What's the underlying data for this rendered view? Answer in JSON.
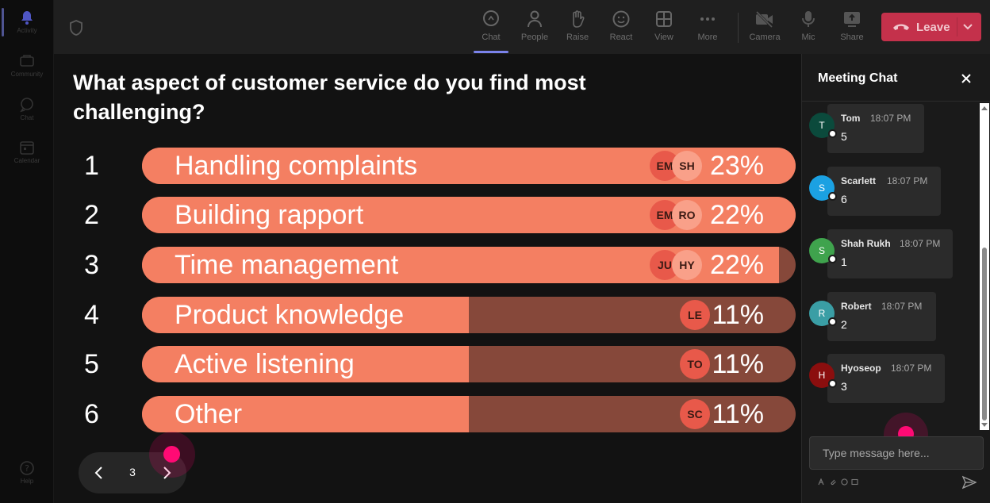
{
  "rail": {
    "items": [
      {
        "label": "Activity"
      },
      {
        "label": "Community"
      },
      {
        "label": "Chat"
      },
      {
        "label": "Calendar"
      }
    ],
    "help": "Help"
  },
  "toolbar": {
    "chat": "Chat",
    "people": "People",
    "raise": "Raise",
    "react": "React",
    "view": "View",
    "more": "More",
    "camera": "Camera",
    "mic": "Mic",
    "share": "Share",
    "leave": "Leave"
  },
  "poll": {
    "question": "What aspect of customer service do you find most challenging?",
    "options": [
      {
        "num": "1",
        "label": "Handling complaints",
        "percent": "23%",
        "fill": 1.0,
        "avatars": [
          "EM",
          "SH"
        ]
      },
      {
        "num": "2",
        "label": "Building rapport",
        "percent": "22%",
        "fill": 1.0,
        "avatars": [
          "EM",
          "RO"
        ]
      },
      {
        "num": "3",
        "label": "Time management",
        "percent": "22%",
        "fill": 0.975,
        "avatars": [
          "JU",
          "HY"
        ]
      },
      {
        "num": "4",
        "label": "Product knowledge",
        "percent": "11%",
        "fill": 0.5,
        "avatars": [
          "LE"
        ]
      },
      {
        "num": "5",
        "label": "Active listening",
        "percent": "11%",
        "fill": 0.5,
        "avatars": [
          "TO"
        ]
      },
      {
        "num": "6",
        "label": "Other",
        "percent": "11%",
        "fill": 0.5,
        "avatars": [
          "SC"
        ]
      }
    ],
    "page": "3"
  },
  "chat": {
    "title": "Meeting Chat",
    "messages": [
      {
        "initial": "T",
        "name": "Tom",
        "time": "18:07 PM",
        "text": "5",
        "color": "#0b4a3c"
      },
      {
        "initial": "S",
        "name": "Scarlett",
        "time": "18:07 PM",
        "text": "6",
        "color": "#1ba1e2"
      },
      {
        "initial": "S",
        "name": "Shah Rukh",
        "time": "18:07 PM",
        "text": "1",
        "color": "#3fa34d"
      },
      {
        "initial": "R",
        "name": "Robert",
        "time": "18:07 PM",
        "text": "2",
        "color": "#3a9ea5"
      },
      {
        "initial": "H",
        "name": "Hyoseop",
        "time": "18:07 PM",
        "text": "3",
        "color": "#8b0e0e"
      }
    ],
    "input_placeholder": "Type message here..."
  }
}
